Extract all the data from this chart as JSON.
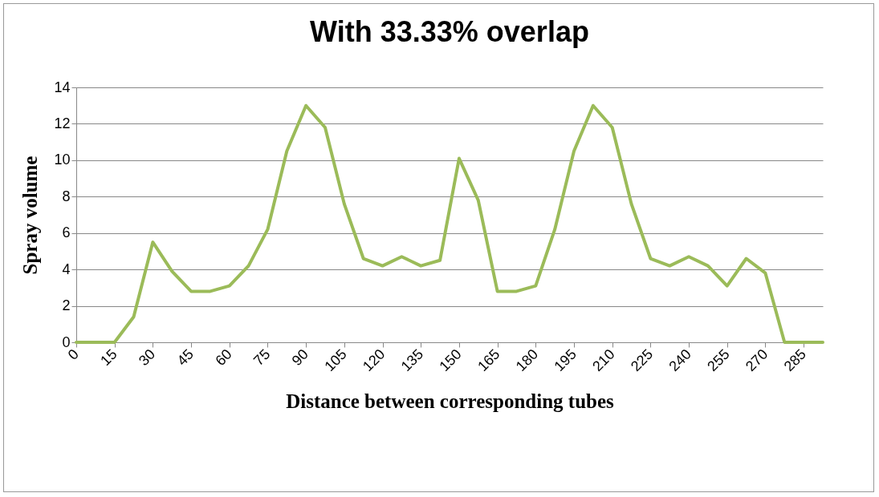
{
  "chart_data": {
    "type": "line",
    "title": "With 33.33% overlap",
    "xlabel": "Distance between corresponding tubes",
    "ylabel": "Spray volume",
    "x": [
      0,
      7.5,
      15,
      22.5,
      30,
      37.5,
      45,
      52.5,
      60,
      67.5,
      75,
      82.5,
      90,
      97.5,
      105,
      112.5,
      120,
      127.5,
      135,
      142.5,
      150,
      157.5,
      165,
      172.5,
      180,
      187.5,
      195,
      202.5,
      210,
      217.5,
      225,
      232.5,
      240,
      247.5,
      255,
      262.5,
      270,
      277.5,
      285,
      292.5
    ],
    "series": [
      {
        "color": "#9bbb59",
        "values": [
          0,
          0,
          0,
          1.4,
          5.5,
          3.9,
          2.8,
          2.8,
          3.1,
          4.2,
          6.2,
          10.5,
          13,
          11.8,
          7.6,
          4.6,
          4.2,
          4.7,
          4.2,
          4.5,
          10.1,
          7.8,
          2.8,
          2.8,
          3.1,
          6.2,
          10.5,
          13,
          11.8,
          7.6,
          4.6,
          4.2,
          4.7,
          4.2,
          3.1,
          4.6,
          3.8,
          0,
          0,
          0
        ]
      }
    ],
    "xlim": [
      0,
      292.5
    ],
    "xticks": [
      0,
      15,
      30,
      45,
      60,
      75,
      90,
      105,
      120,
      135,
      150,
      165,
      180,
      195,
      210,
      225,
      240,
      255,
      270,
      285
    ],
    "ylim": [
      0,
      14
    ],
    "yticks": [
      0,
      2,
      4,
      6,
      8,
      10,
      12,
      14
    ],
    "grid": "y",
    "legend": false,
    "marker": "none",
    "line_style": "solid"
  }
}
